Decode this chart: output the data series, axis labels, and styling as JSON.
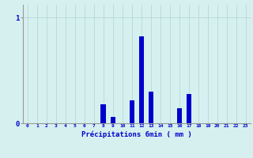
{
  "title": "",
  "xlabel": "Précipitations 6min ( mm )",
  "hours": [
    0,
    1,
    2,
    3,
    4,
    5,
    6,
    7,
    8,
    9,
    10,
    11,
    12,
    13,
    14,
    15,
    16,
    17,
    18,
    19,
    20,
    21,
    22,
    23
  ],
  "values": [
    0,
    0,
    0,
    0,
    0,
    0,
    0,
    0,
    0.18,
    0.06,
    0,
    0.22,
    0.82,
    0.3,
    0,
    0,
    0.14,
    0.28,
    0,
    0,
    0,
    0,
    0,
    0
  ],
  "bar_color": "#0000cc",
  "bg_color": "#d6f0f0",
  "grid_color": "#b8d8d8",
  "axis_color": "#999999",
  "text_color": "#0000cc",
  "ytick_val": 1.0,
  "ylim": [
    0,
    1.12
  ],
  "xlim": [
    -0.5,
    23.5
  ],
  "bar_width": 0.55
}
